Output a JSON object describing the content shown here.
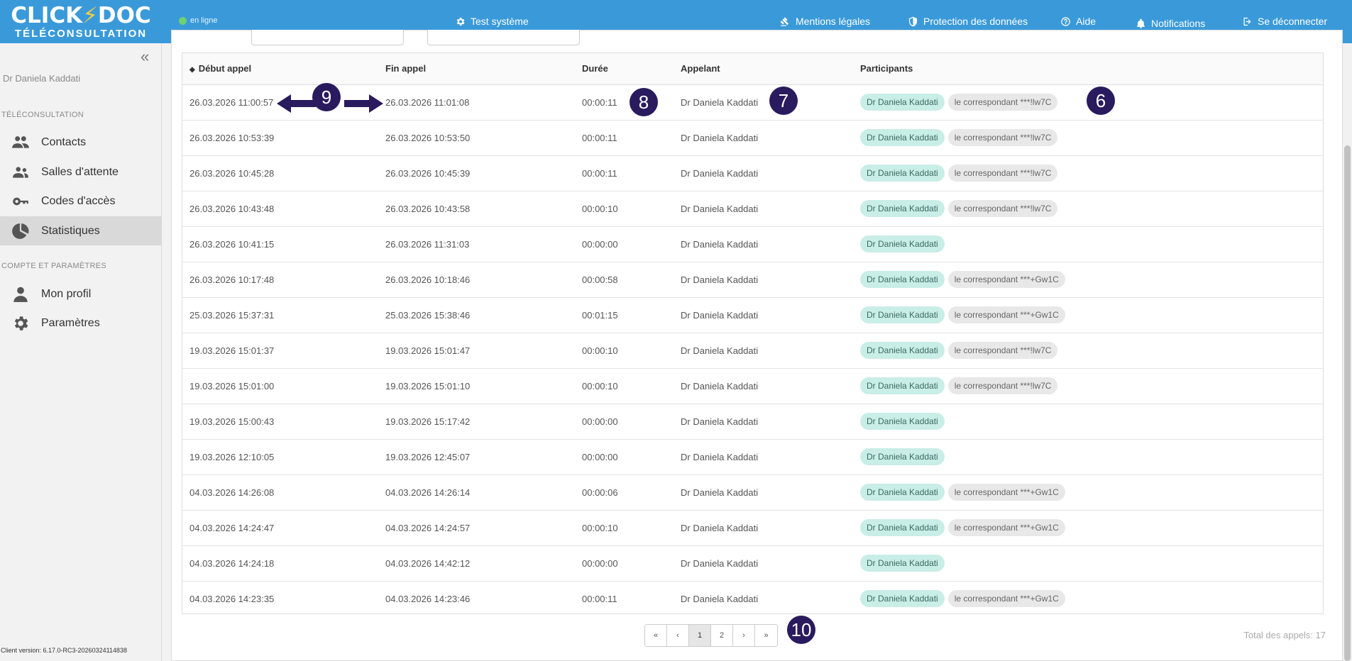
{
  "app": {
    "logo_main": "CLICK",
    "logo_main_end": "DOC",
    "logo_sub": "TÉLÉCONSULTATION",
    "status": "en ligne"
  },
  "topnav": {
    "test": "Test système",
    "legal": "Mentions légales",
    "privacy": "Protection des données",
    "help": "Aide",
    "notifications": "Notifications",
    "logout": "Se déconnecter"
  },
  "sidebar": {
    "collapse": "«",
    "user": "Dr Daniela Kaddati",
    "section1": "TÉLÉCONSULTATION",
    "section2": "COMPTE ET PARAMÈTRES",
    "items": [
      {
        "label": "Contacts",
        "icon": "users-icon"
      },
      {
        "label": "Salles d'attente",
        "icon": "group-icon"
      },
      {
        "label": "Codes d'accès",
        "icon": "key-icon"
      },
      {
        "label": "Statistiques",
        "icon": "pie-chart-icon"
      },
      {
        "label": "Mon profil",
        "icon": "user-icon"
      },
      {
        "label": "Paramètres",
        "icon": "gear-icon"
      }
    ],
    "client_version": "Client version: 6.17.0-RC3-20260324114838"
  },
  "table": {
    "headers": {
      "start": "Début appel",
      "end": "Fin appel",
      "duration": "Durée",
      "caller": "Appelant",
      "participants": "Participants"
    },
    "rows": [
      {
        "start": "26.03.2026 11:00:57",
        "end": "26.03.2026 11:01:08",
        "duration": "00:00:11",
        "caller": "Dr Daniela Kaddati",
        "p1": "Dr Daniela Kaddati",
        "p2": "le correspondant ***!lw7C"
      },
      {
        "start": "26.03.2026 10:53:39",
        "end": "26.03.2026 10:53:50",
        "duration": "00:00:11",
        "caller": "Dr Daniela Kaddati",
        "p1": "Dr Daniela Kaddati",
        "p2": "le correspondant ***!lw7C"
      },
      {
        "start": "26.03.2026 10:45:28",
        "end": "26.03.2026 10:45:39",
        "duration": "00:00:11",
        "caller": "Dr Daniela Kaddati",
        "p1": "Dr Daniela Kaddati",
        "p2": "le correspondant ***!lw7C"
      },
      {
        "start": "26.03.2026 10:43:48",
        "end": "26.03.2026 10:43:58",
        "duration": "00:00:10",
        "caller": "Dr Daniela Kaddati",
        "p1": "Dr Daniela Kaddati",
        "p2": "le correspondant ***!lw7C"
      },
      {
        "start": "26.03.2026 10:41:15",
        "end": "26.03.2026 11:31:03",
        "duration": "00:00:00",
        "caller": "Dr Daniela Kaddati",
        "p1": "Dr Daniela Kaddati",
        "p2": ""
      },
      {
        "start": "26.03.2026 10:17:48",
        "end": "26.03.2026 10:18:46",
        "duration": "00:00:58",
        "caller": "Dr Daniela Kaddati",
        "p1": "Dr Daniela Kaddati",
        "p2": "le correspondant ***+Gw1C"
      },
      {
        "start": "25.03.2026 15:37:31",
        "end": "25.03.2026 15:38:46",
        "duration": "00:01:15",
        "caller": "Dr Daniela Kaddati",
        "p1": "Dr Daniela Kaddati",
        "p2": "le correspondant ***+Gw1C"
      },
      {
        "start": "19.03.2026 15:01:37",
        "end": "19.03.2026 15:01:47",
        "duration": "00:00:10",
        "caller": "Dr Daniela Kaddati",
        "p1": "Dr Daniela Kaddati",
        "p2": "le correspondant ***!lw7C"
      },
      {
        "start": "19.03.2026 15:01:00",
        "end": "19.03.2026 15:01:10",
        "duration": "00:00:10",
        "caller": "Dr Daniela Kaddati",
        "p1": "Dr Daniela Kaddati",
        "p2": "le correspondant ***!lw7C"
      },
      {
        "start": "19.03.2026 15:00:43",
        "end": "19.03.2026 15:17:42",
        "duration": "00:00:00",
        "caller": "Dr Daniela Kaddati",
        "p1": "Dr Daniela Kaddati",
        "p2": ""
      },
      {
        "start": "19.03.2026 12:10:05",
        "end": "19.03.2026 12:45:07",
        "duration": "00:00:00",
        "caller": "Dr Daniela Kaddati",
        "p1": "Dr Daniela Kaddati",
        "p2": ""
      },
      {
        "start": "04.03.2026 14:26:08",
        "end": "04.03.2026 14:26:14",
        "duration": "00:00:06",
        "caller": "Dr Daniela Kaddati",
        "p1": "Dr Daniela Kaddati",
        "p2": "le correspondant ***+Gw1C"
      },
      {
        "start": "04.03.2026 14:24:47",
        "end": "04.03.2026 14:24:57",
        "duration": "00:00:10",
        "caller": "Dr Daniela Kaddati",
        "p1": "Dr Daniela Kaddati",
        "p2": "le correspondant ***+Gw1C"
      },
      {
        "start": "04.03.2026 14:24:18",
        "end": "04.03.2026 14:42:12",
        "duration": "00:00:00",
        "caller": "Dr Daniela Kaddati",
        "p1": "Dr Daniela Kaddati",
        "p2": ""
      },
      {
        "start": "04.03.2026 14:23:35",
        "end": "04.03.2026 14:23:46",
        "duration": "00:00:11",
        "caller": "Dr Daniela Kaddati",
        "p1": "Dr Daniela Kaddati",
        "p2": "le correspondant ***+Gw1C"
      }
    ]
  },
  "pagination": {
    "first": "«",
    "prev": "‹",
    "pages": [
      "1",
      "2"
    ],
    "current": "1",
    "next": "›",
    "last": "»"
  },
  "total": "Total des appels: 17",
  "annotations": [
    "9",
    "8",
    "7",
    "6",
    "10"
  ],
  "colors": {
    "topbar": "#3a9ad9",
    "badge": "#2a1a5e",
    "chip_doctor": "#c9ede7",
    "chip_correspondent": "#e8e8e8"
  }
}
